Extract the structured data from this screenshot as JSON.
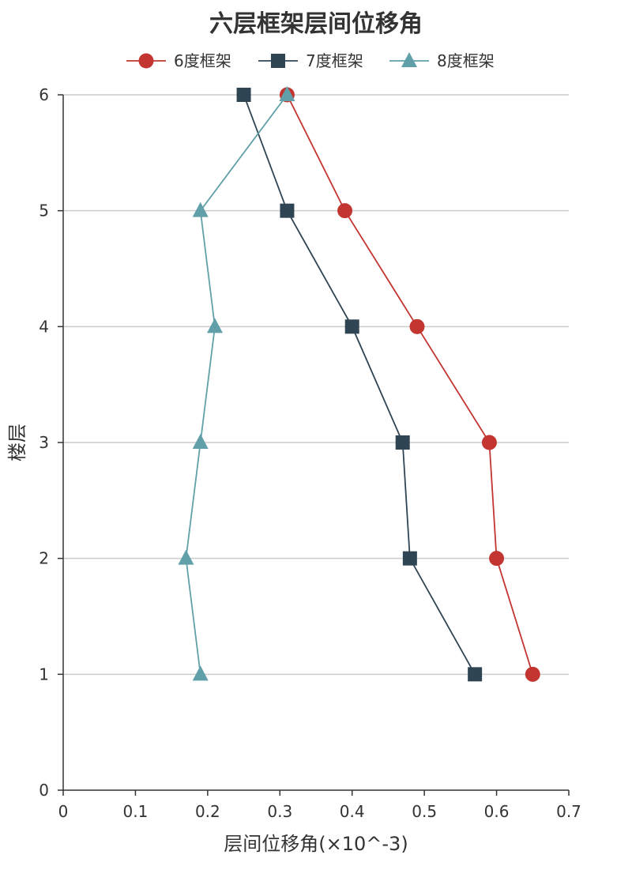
{
  "chart_data": {
    "type": "line",
    "title": "六层框架层间位移角",
    "xlabel": "层间位移角(×10^-3)",
    "ylabel": "楼层",
    "xlim": [
      0,
      0.7
    ],
    "ylim": [
      0,
      6
    ],
    "x_ticks": [
      "0",
      "0.1",
      "0.2",
      "0.3",
      "0.4",
      "0.5",
      "0.6",
      "0.7"
    ],
    "y_ticks": [
      "0",
      "1",
      "2",
      "3",
      "4",
      "5",
      "6"
    ],
    "grid": "horizontal",
    "legend_position": "top-center",
    "floors": [
      1,
      2,
      3,
      4,
      5,
      6
    ],
    "series": [
      {
        "name": "6度框架",
        "marker": "circle",
        "color": "#c23531",
        "values": [
          0.65,
          0.6,
          0.59,
          0.49,
          0.39,
          0.31
        ]
      },
      {
        "name": "7度框架",
        "marker": "square",
        "color": "#2f4554",
        "values": [
          0.57,
          0.48,
          0.47,
          0.4,
          0.31,
          0.25
        ]
      },
      {
        "name": "8度框架",
        "marker": "triangle",
        "color": "#61a0a8",
        "values": [
          0.19,
          0.17,
          0.19,
          0.21,
          0.19,
          0.31
        ]
      }
    ]
  }
}
